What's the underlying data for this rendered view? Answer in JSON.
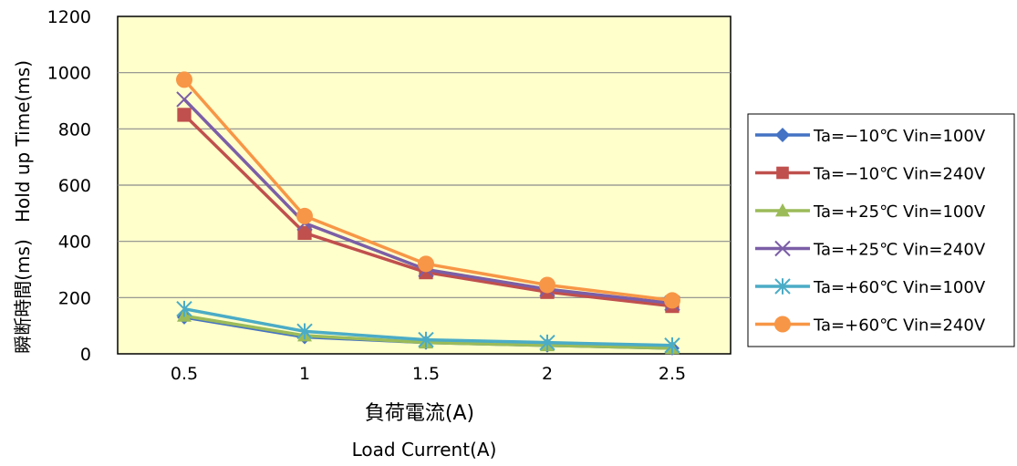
{
  "chart_data": {
    "type": "line",
    "title": "",
    "xlabel_jp": "負荷電流(A)",
    "xlabel_en": "Load Current(A)",
    "ylabel_jp": "瞬断時間(ms)",
    "ylabel_en": "Hold up Time(ms)",
    "x": [
      0.5,
      1,
      1.5,
      2,
      2.5
    ],
    "x_tick_labels": [
      "0.5",
      "1",
      "1.5",
      "2",
      "2.5"
    ],
    "ylim": [
      0,
      1200
    ],
    "y_ticks": [
      0,
      200,
      400,
      600,
      800,
      1000,
      1200
    ],
    "y_tick_labels": [
      "0",
      "200",
      "400",
      "600",
      "800",
      "1000",
      "1200"
    ],
    "grid": "horizontal",
    "plot_background": "#FFFFCC",
    "legend_position": "right",
    "series": [
      {
        "name": "Ta=−10℃ Vin=100V",
        "marker": "diamond",
        "color": "#4472C4",
        "values": [
          130,
          60,
          40,
          30,
          20
        ]
      },
      {
        "name": "Ta=−10℃ Vin=240V",
        "marker": "square",
        "color": "#C0504D",
        "values": [
          850,
          430,
          290,
          220,
          170
        ]
      },
      {
        "name": "Ta=+25℃ Vin=100V",
        "marker": "triangle",
        "color": "#9BBB59",
        "values": [
          135,
          65,
          40,
          30,
          20
        ]
      },
      {
        "name": "Ta=+25℃ Vin=240V",
        "marker": "x",
        "color": "#7B5EA7",
        "values": [
          905,
          465,
          300,
          230,
          180
        ]
      },
      {
        "name": "Ta=+60℃ Vin=100V",
        "marker": "star",
        "color": "#4BACC6",
        "values": [
          160,
          80,
          50,
          40,
          30
        ]
      },
      {
        "name": "Ta=+60℃ Vin=240V",
        "marker": "circle",
        "color": "#F79646",
        "values": [
          975,
          490,
          320,
          245,
          190
        ]
      }
    ]
  }
}
